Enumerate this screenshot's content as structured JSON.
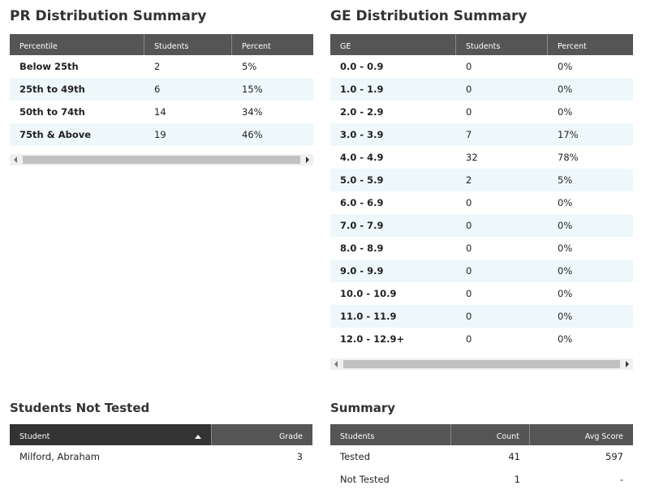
{
  "pr": {
    "title": "PR Distribution Summary",
    "headers": [
      "Percentile",
      "Students",
      "Percent"
    ],
    "rows": [
      [
        "Below 25th",
        "2",
        "5%"
      ],
      [
        "25th to 49th",
        "6",
        "15%"
      ],
      [
        "50th to 74th",
        "14",
        "34%"
      ],
      [
        "75th & Above",
        "19",
        "46%"
      ]
    ]
  },
  "ge": {
    "title": "GE Distribution Summary",
    "headers": [
      "GE",
      "Students",
      "Percent"
    ],
    "rows": [
      [
        "0.0 - 0.9",
        "0",
        "0%"
      ],
      [
        "1.0 - 1.9",
        "0",
        "0%"
      ],
      [
        "2.0 - 2.9",
        "0",
        "0%"
      ],
      [
        "3.0 - 3.9",
        "7",
        "17%"
      ],
      [
        "4.0 - 4.9",
        "32",
        "78%"
      ],
      [
        "5.0 - 5.9",
        "2",
        "5%"
      ],
      [
        "6.0 - 6.9",
        "0",
        "0%"
      ],
      [
        "7.0 - 7.9",
        "0",
        "0%"
      ],
      [
        "8.0 - 8.9",
        "0",
        "0%"
      ],
      [
        "9.0 - 9.9",
        "0",
        "0%"
      ],
      [
        "10.0 - 10.9",
        "0",
        "0%"
      ],
      [
        "11.0 - 11.9",
        "0",
        "0%"
      ],
      [
        "12.0 - 12.9+",
        "0",
        "0%"
      ]
    ]
  },
  "not_tested": {
    "title": "Students Not Tested",
    "headers": [
      "Student",
      "Grade"
    ],
    "rows": [
      [
        "Milford, Abraham",
        "3"
      ]
    ]
  },
  "summary": {
    "title": "Summary",
    "headers": [
      "Students",
      "Count",
      "Avg Score"
    ],
    "rows": [
      [
        "Tested",
        "41",
        "597"
      ],
      [
        "Not Tested",
        "1",
        "-"
      ]
    ]
  }
}
